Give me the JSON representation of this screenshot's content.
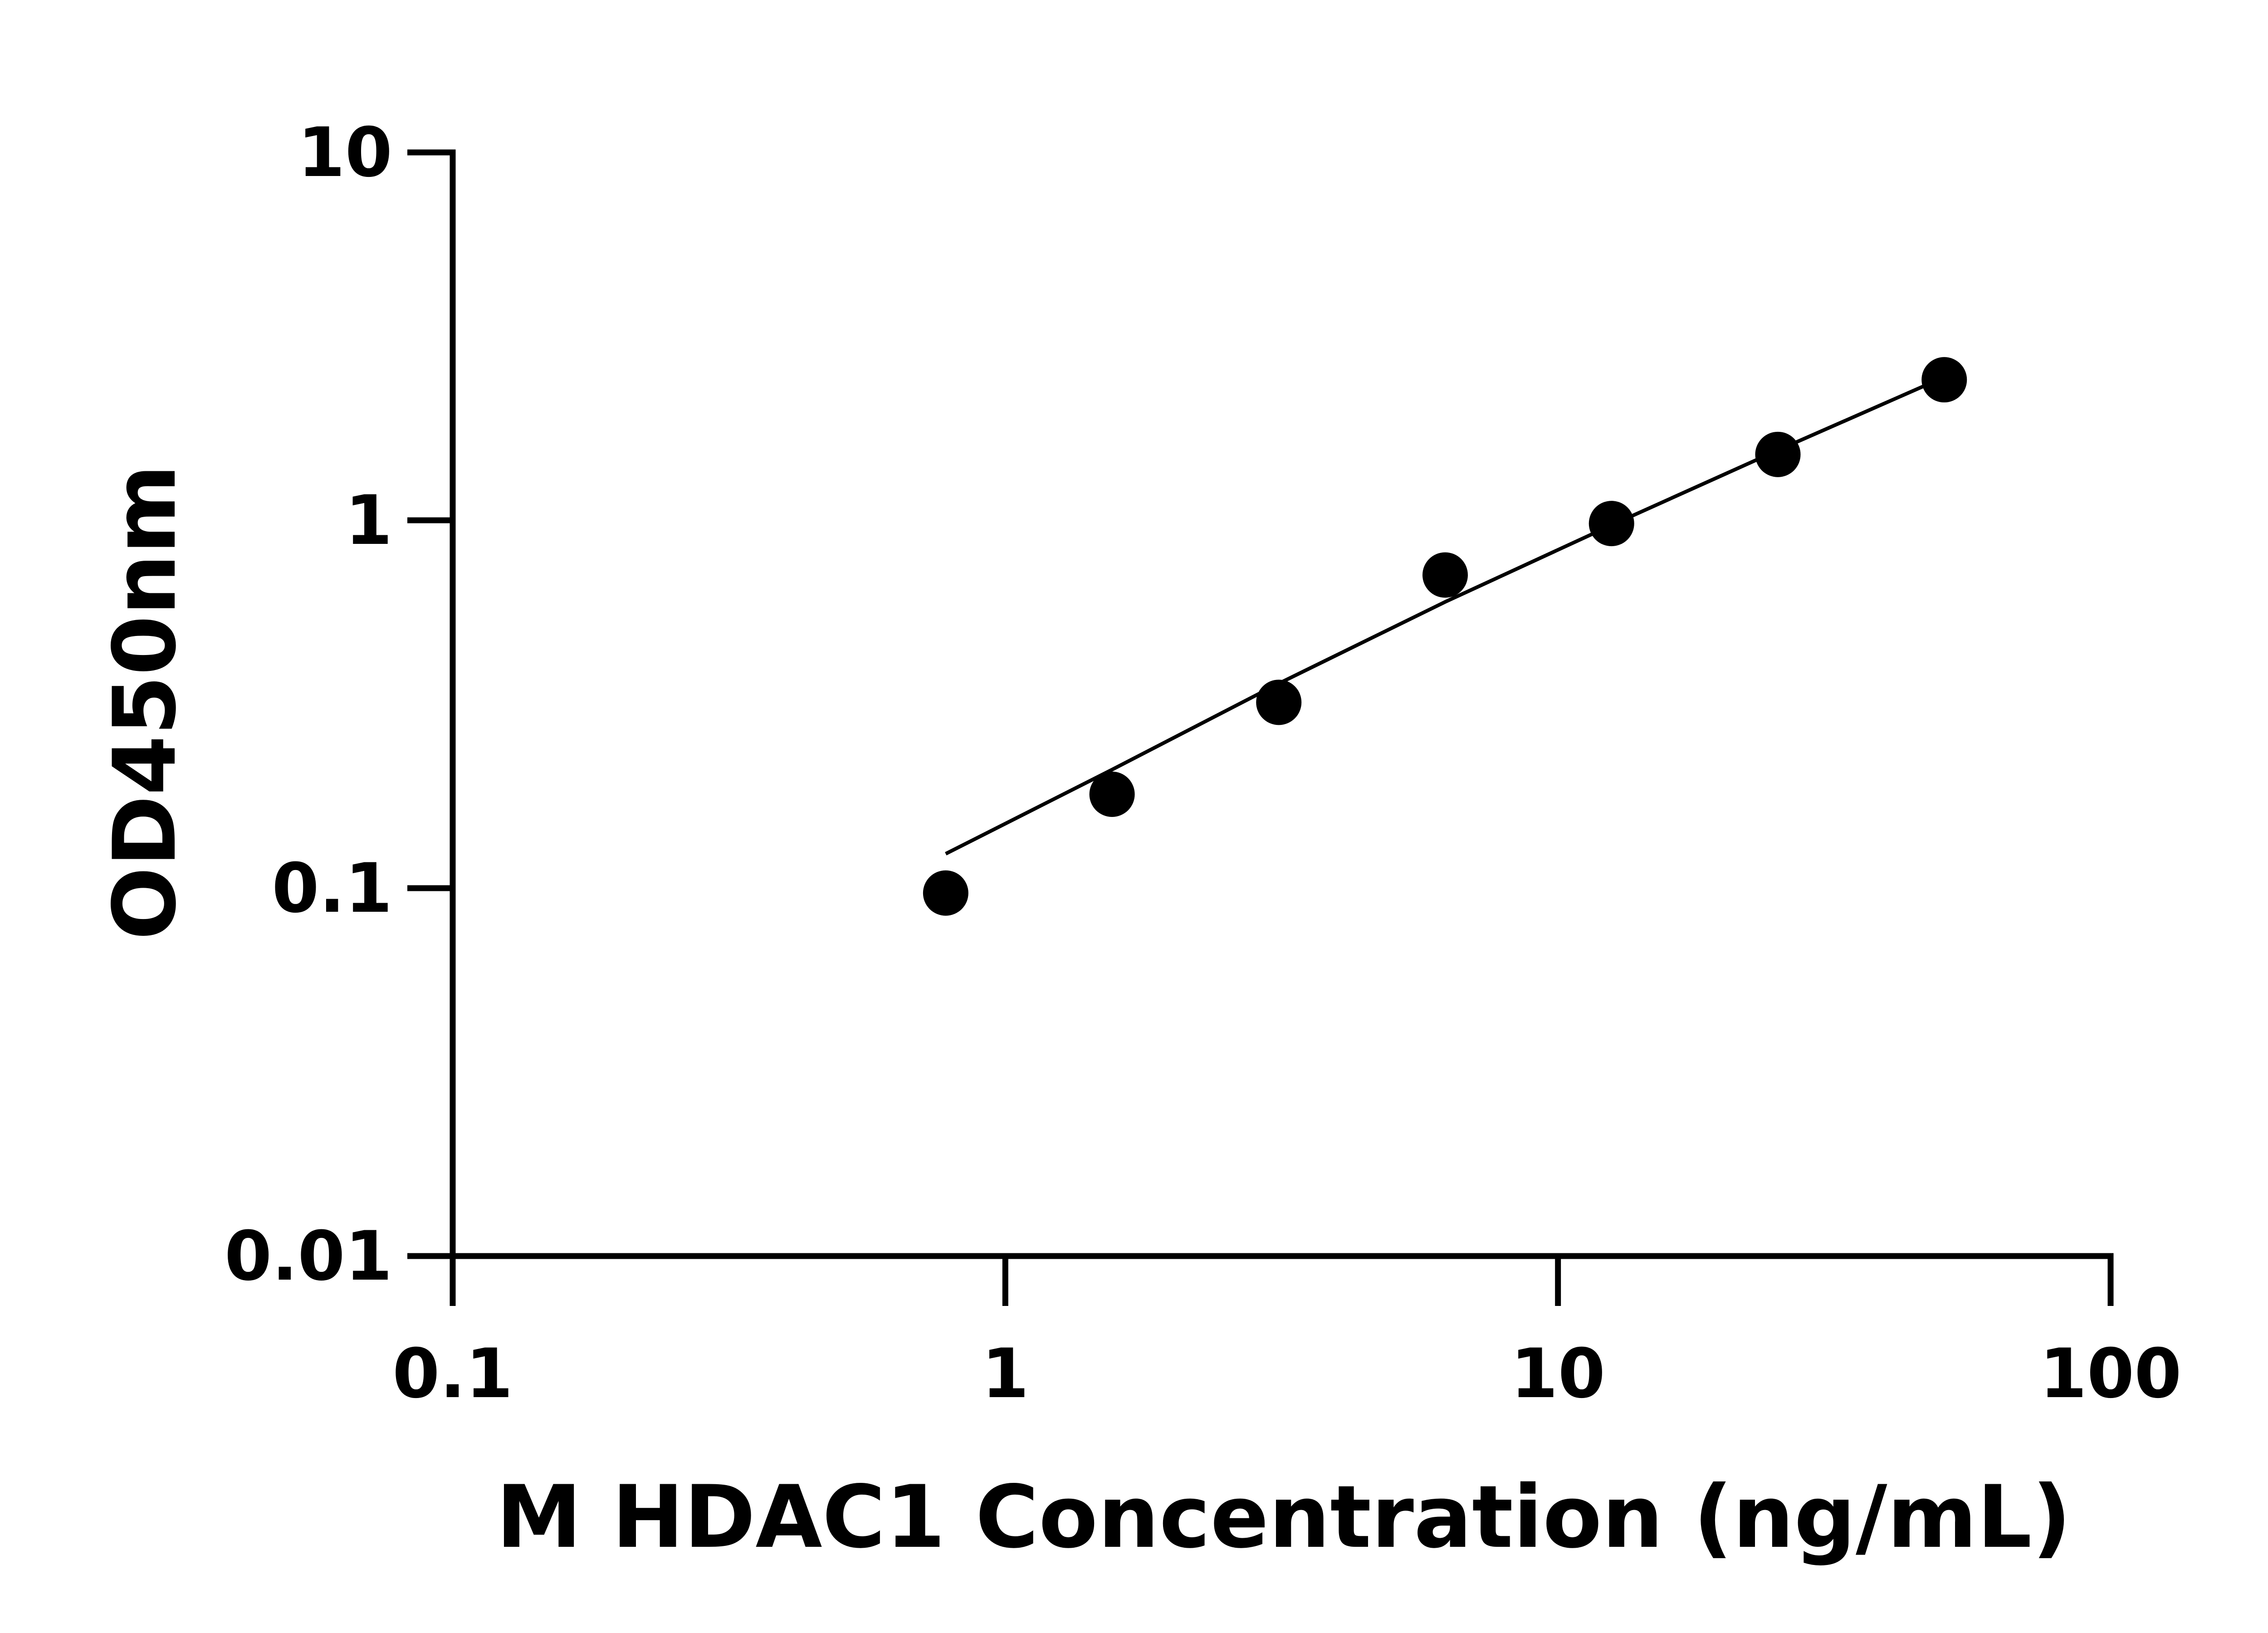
{
  "chart_data": {
    "type": "scatter",
    "xlabel": "M HDAC1 Concentration (ng/mL)",
    "ylabel": "OD450nm",
    "xscale": "log",
    "yscale": "log",
    "xlim": [
      0.1,
      100
    ],
    "ylim": [
      0.01,
      10
    ],
    "xticks": [
      "0.1",
      "1",
      "10",
      "100"
    ],
    "yticks": [
      "0.01",
      "0.1",
      "1",
      "10"
    ],
    "grid": false,
    "points": {
      "x": [
        0.78,
        1.56,
        3.125,
        6.25,
        12.5,
        25,
        50
      ],
      "y": [
        0.097,
        0.18,
        0.32,
        0.71,
        0.98,
        1.51,
        2.41
      ]
    },
    "fit_curve": {
      "x": [
        0.78,
        1.56,
        3.125,
        6.25,
        12.5,
        25,
        50
      ],
      "y": [
        0.124,
        0.21,
        0.36,
        0.6,
        0.97,
        1.55,
        2.45
      ]
    },
    "colors": {
      "points": "#000000",
      "line": "#000000",
      "axes": "#000000"
    }
  }
}
